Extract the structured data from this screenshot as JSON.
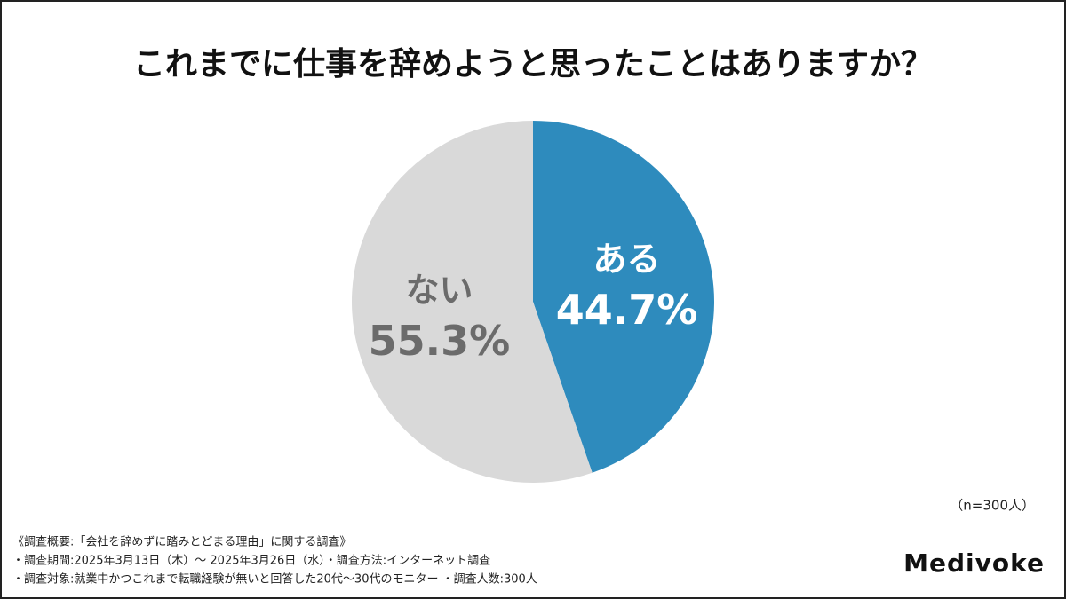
{
  "chart_data": {
    "type": "pie",
    "title": "これまでに仕事を辞めようと思ったことはありますか？",
    "categories": [
      "ある",
      "ない"
    ],
    "values": [
      44.7,
      55.3
    ],
    "value_labels": [
      "44.7%",
      "55.3%"
    ],
    "colors": [
      "#2e8bbd",
      "#d9d9d9"
    ],
    "label_colors": [
      "#ffffff",
      "#6b6b6b"
    ],
    "sample_note": "（n=300人）",
    "footnotes": [
      "《調査概要:「会社を辞めずに踏みとどまる理由」に関する調査》",
      "・調査期間:2025年3月13日（木）～ 2025年3月26日（水）・調査方法:インターネット調査",
      "・調査対象:就業中かつこれまで転職経験が無いと回答した20代～30代のモニター ・調査人数:300人"
    ],
    "brand": "Medivoke"
  }
}
